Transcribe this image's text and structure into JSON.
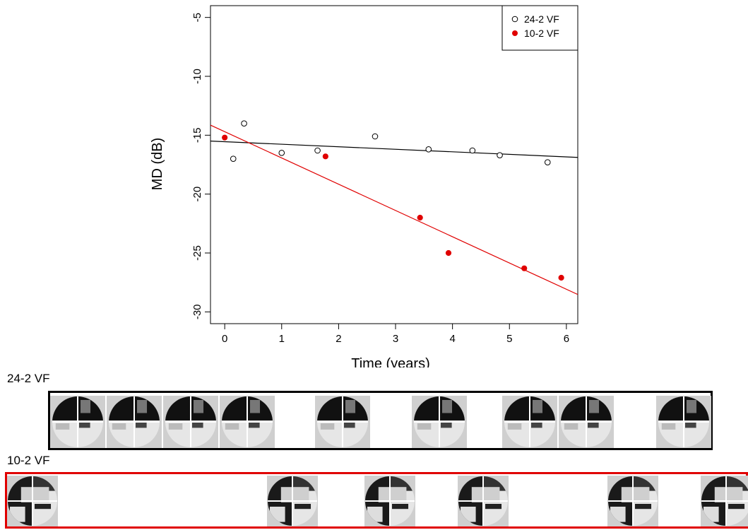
{
  "chart_data": {
    "type": "scatter",
    "xlabel": "Time (years)",
    "ylabel": "MD (dB)",
    "xlim": [
      -0.25,
      6.2
    ],
    "ylim": [
      -31,
      -4
    ],
    "xticks": [
      "0",
      "1",
      "2",
      "3",
      "4",
      "5",
      "6"
    ],
    "yticks": [
      "-5",
      "-10",
      "-15",
      "-20",
      "-25",
      "-30"
    ],
    "legend_position": "top-right",
    "series": [
      {
        "name": "24-2 VF",
        "marker": "open-circle",
        "color": "#000000",
        "x": [
          0.15,
          0.34,
          1.0,
          1.63,
          2.64,
          3.58,
          4.35,
          4.83,
          5.67
        ],
        "y": [
          -17.0,
          -14.0,
          -16.5,
          -16.3,
          -15.1,
          -16.2,
          -16.3,
          -16.7,
          -17.3
        ],
        "fit": {
          "intercept": -15.55,
          "slope": -0.215
        }
      },
      {
        "name": "10-2 VF",
        "marker": "filled-circle",
        "color": "#e00000",
        "x": [
          0.0,
          1.77,
          3.43,
          3.93,
          5.26,
          5.91
        ],
        "y": [
          -15.2,
          -16.8,
          -22.0,
          -25.0,
          -26.3,
          -27.1
        ],
        "fit": {
          "intercept": -14.7,
          "slope": -2.23
        }
      }
    ]
  },
  "strips": {
    "vf24": {
      "label": "24-2 VF",
      "x_years": [
        0.15,
        0.34,
        1.0,
        1.63,
        2.64,
        3.58,
        4.35,
        4.83,
        5.67
      ]
    },
    "vf10": {
      "label": "10-2 VF",
      "x_years": [
        0.0,
        1.77,
        3.43,
        3.93,
        5.26,
        5.91
      ]
    }
  },
  "colors": {
    "vf24_border": "#000000",
    "vf10_border": "#e00000"
  }
}
